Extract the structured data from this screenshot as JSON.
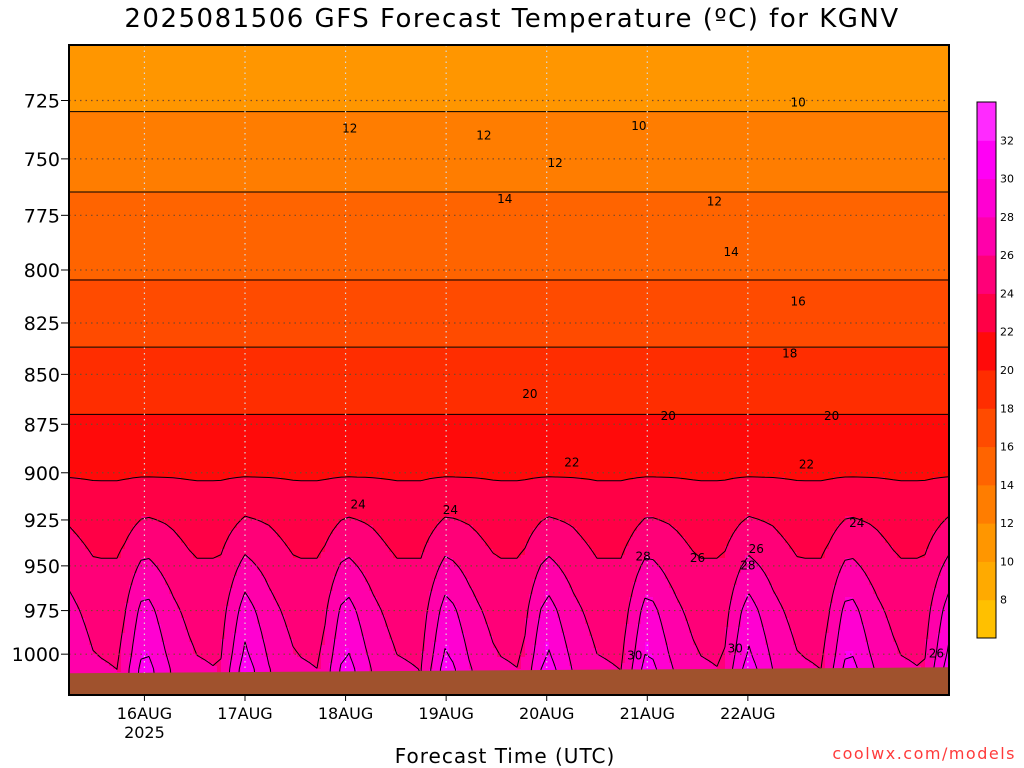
{
  "title": "2025081506 GFS Forecast Temperature (ºC) for KGNV",
  "xlabel": "Forecast Time (UTC)",
  "credit": "coolwx.com/models",
  "chart_data": {
    "type": "heatmap",
    "title": "2025081506 GFS Forecast Temperature (ºC) for KGNV",
    "xlabel": "Forecast Time (UTC)",
    "ylabel": "",
    "x_range_hours": [
      -18,
      192
    ],
    "y_range": [
      1024,
      702
    ],
    "y_scale": "pressure (reversed)",
    "y_ticks": [
      725,
      750,
      775,
      800,
      825,
      850,
      875,
      900,
      925,
      950,
      975,
      1000
    ],
    "x_ticks": [
      {
        "label": "16AUG",
        "sublabel": "2025",
        "hour": 0
      },
      {
        "label": "17AUG",
        "sublabel": "",
        "hour": 24
      },
      {
        "label": "18AUG",
        "sublabel": "",
        "hour": 48
      },
      {
        "label": "19AUG",
        "sublabel": "",
        "hour": 72
      },
      {
        "label": "20AUG",
        "sublabel": "",
        "hour": 96
      },
      {
        "label": "21AUG",
        "sublabel": "",
        "hour": 120
      },
      {
        "label": "22AUG",
        "sublabel": "",
        "hour": 144
      }
    ],
    "grid": true,
    "surface_pressure": 1010,
    "colorbar": {
      "placement": "right",
      "levels": [
        6,
        8,
        10,
        12,
        14,
        16,
        18,
        20,
        22,
        24,
        26,
        28,
        30,
        32,
        34
      ],
      "tick_labels": [
        8,
        10,
        12,
        14,
        16,
        18,
        20,
        22,
        24,
        26,
        28,
        30,
        32
      ],
      "colors": [
        "#ffc000",
        "#ffaa00",
        "#ff9600",
        "#ff7d00",
        "#ff6400",
        "#ff4b00",
        "#ff2d00",
        "#ff0a0a",
        "#ff0046",
        "#ff0078",
        "#ff00aa",
        "#ff00d2",
        "#ff00f5",
        "#ff2aff"
      ]
    },
    "profile_pressures": [
      700,
      725,
      750,
      775,
      800,
      825,
      850,
      875,
      900,
      925,
      950,
      975,
      1000,
      1010
    ],
    "profiles": [
      {
        "hour": -18,
        "temps": [
          10.0,
          11.7,
          13.3,
          14.5,
          15.7,
          17.3,
          18.8,
          20.3,
          21.8,
          23.8,
          25.3,
          26.6,
          27.6,
          28.0
        ]
      },
      {
        "hour": -12,
        "temps": [
          10.0,
          11.7,
          13.3,
          14.5,
          15.7,
          17.3,
          18.8,
          20.3,
          21.8,
          23.0,
          24.2,
          25.2,
          26.0,
          26.4
        ]
      },
      {
        "hour": -6,
        "temps": [
          10.0,
          11.7,
          13.3,
          14.5,
          15.7,
          17.3,
          18.8,
          20.3,
          21.8,
          23.0,
          24.2,
          25.0,
          25.7,
          26.0
        ]
      },
      {
        "hour": 0,
        "temps": [
          10.0,
          11.7,
          13.3,
          14.5,
          15.7,
          17.3,
          18.8,
          20.3,
          21.8,
          24.2,
          26.6,
          29.0,
          30.4,
          31.3
        ]
      },
      {
        "hour": 6,
        "temps": [
          10.0,
          11.7,
          13.3,
          14.5,
          15.7,
          17.3,
          18.8,
          20.3,
          21.8,
          23.8,
          25.3,
          26.6,
          27.6,
          28.0
        ]
      },
      {
        "hour": 12,
        "temps": [
          10.0,
          11.7,
          13.3,
          14.5,
          15.7,
          17.3,
          18.8,
          20.3,
          21.8,
          23.0,
          24.2,
          25.2,
          26.0,
          26.4
        ]
      },
      {
        "hour": 18,
        "temps": [
          10.0,
          11.7,
          13.3,
          14.5,
          15.7,
          17.3,
          18.8,
          20.3,
          21.8,
          23.0,
          24.2,
          25.0,
          25.7,
          26.0
        ]
      },
      {
        "hour": 24,
        "temps": [
          10.0,
          11.7,
          13.3,
          14.5,
          15.7,
          17.3,
          18.8,
          20.3,
          21.8,
          24.2,
          26.6,
          29.0,
          30.4,
          31.3
        ]
      },
      {
        "hour": 30,
        "temps": [
          10.0,
          11.7,
          13.3,
          14.5,
          15.7,
          17.3,
          18.8,
          20.3,
          21.8,
          23.8,
          25.3,
          26.6,
          27.6,
          28.0
        ]
      },
      {
        "hour": 36,
        "temps": [
          10.0,
          11.7,
          13.3,
          14.5,
          15.7,
          17.3,
          18.8,
          20.3,
          21.8,
          23.0,
          24.2,
          25.2,
          26.0,
          26.4
        ]
      },
      {
        "hour": 42,
        "temps": [
          10.0,
          11.7,
          13.3,
          14.5,
          15.7,
          17.3,
          18.8,
          20.3,
          21.8,
          23.0,
          24.2,
          25.0,
          25.7,
          26.0
        ]
      },
      {
        "hour": 48,
        "temps": [
          10.0,
          11.7,
          13.3,
          14.5,
          15.7,
          17.3,
          18.8,
          20.3,
          21.8,
          24.2,
          26.6,
          29.0,
          30.4,
          31.3
        ]
      },
      {
        "hour": 54,
        "temps": [
          10.0,
          11.7,
          13.3,
          14.5,
          15.7,
          17.3,
          18.8,
          20.3,
          21.8,
          23.8,
          25.3,
          26.6,
          27.6,
          28.0
        ]
      },
      {
        "hour": 60,
        "temps": [
          10.0,
          11.7,
          13.3,
          14.5,
          15.7,
          17.3,
          18.8,
          20.3,
          21.8,
          23.0,
          24.2,
          25.2,
          26.0,
          26.4
        ]
      },
      {
        "hour": 66,
        "temps": [
          10.0,
          11.7,
          13.3,
          14.5,
          15.7,
          17.3,
          18.8,
          20.3,
          21.8,
          23.0,
          24.2,
          25.0,
          25.7,
          26.0
        ]
      },
      {
        "hour": 72,
        "temps": [
          10.0,
          11.7,
          13.3,
          14.5,
          15.7,
          17.3,
          18.8,
          20.3,
          21.8,
          24.2,
          26.6,
          29.0,
          30.4,
          31.3
        ]
      },
      {
        "hour": 78,
        "temps": [
          10.0,
          11.7,
          13.3,
          14.5,
          15.7,
          17.3,
          18.8,
          20.3,
          21.8,
          23.8,
          25.3,
          26.6,
          27.6,
          28.0
        ]
      },
      {
        "hour": 84,
        "temps": [
          10.0,
          11.7,
          13.3,
          14.5,
          15.7,
          17.3,
          18.8,
          20.3,
          21.8,
          23.0,
          24.2,
          25.2,
          26.0,
          26.4
        ]
      },
      {
        "hour": 90,
        "temps": [
          10.0,
          11.7,
          13.3,
          14.5,
          15.7,
          17.3,
          18.8,
          20.3,
          21.8,
          23.0,
          24.2,
          25.0,
          25.7,
          26.0
        ]
      },
      {
        "hour": 96,
        "temps": [
          10.0,
          11.7,
          13.3,
          14.5,
          15.7,
          17.3,
          18.8,
          20.3,
          21.8,
          24.2,
          26.6,
          29.0,
          30.4,
          31.3
        ]
      },
      {
        "hour": 102,
        "temps": [
          10.0,
          11.7,
          13.3,
          14.5,
          15.7,
          17.3,
          18.8,
          20.3,
          21.8,
          23.8,
          25.3,
          26.6,
          27.6,
          28.0
        ]
      },
      {
        "hour": 108,
        "temps": [
          10.0,
          11.7,
          13.3,
          14.5,
          15.7,
          17.3,
          18.8,
          20.3,
          21.8,
          23.0,
          24.2,
          25.2,
          26.0,
          26.4
        ]
      },
      {
        "hour": 114,
        "temps": [
          10.0,
          11.7,
          13.3,
          14.5,
          15.7,
          17.3,
          18.8,
          20.3,
          21.8,
          23.0,
          24.2,
          25.0,
          25.7,
          26.0
        ]
      },
      {
        "hour": 120,
        "temps": [
          10.0,
          11.7,
          13.3,
          14.5,
          15.7,
          17.3,
          18.8,
          20.3,
          21.8,
          24.2,
          26.6,
          29.0,
          30.4,
          31.3
        ]
      },
      {
        "hour": 126,
        "temps": [
          10.0,
          11.7,
          13.3,
          14.5,
          15.7,
          17.3,
          18.8,
          20.3,
          21.8,
          23.8,
          25.3,
          26.6,
          27.6,
          28.0
        ]
      },
      {
        "hour": 132,
        "temps": [
          10.0,
          11.7,
          13.3,
          14.5,
          15.7,
          17.3,
          18.8,
          20.3,
          21.8,
          23.0,
          24.2,
          25.2,
          26.0,
          26.4
        ]
      },
      {
        "hour": 138,
        "temps": [
          10.0,
          11.7,
          13.3,
          14.5,
          15.7,
          17.3,
          18.8,
          20.3,
          21.8,
          23.0,
          24.2,
          25.0,
          25.7,
          26.0
        ]
      },
      {
        "hour": 144,
        "temps": [
          10.0,
          11.7,
          13.3,
          14.5,
          15.7,
          17.3,
          18.8,
          20.3,
          21.8,
          24.2,
          26.6,
          29.0,
          30.4,
          31.3
        ]
      },
      {
        "hour": 150,
        "temps": [
          10.0,
          11.7,
          13.3,
          14.5,
          15.7,
          17.3,
          18.8,
          20.3,
          21.8,
          23.8,
          25.3,
          26.6,
          27.6,
          28.0
        ]
      },
      {
        "hour": 156,
        "temps": [
          10.0,
          11.7,
          13.3,
          14.5,
          15.7,
          17.3,
          18.8,
          20.3,
          21.8,
          23.0,
          24.2,
          25.2,
          26.0,
          26.4
        ]
      },
      {
        "hour": 162,
        "temps": [
          10.0,
          11.7,
          13.3,
          14.5,
          15.7,
          17.3,
          18.8,
          20.3,
          21.8,
          23.0,
          24.2,
          25.0,
          25.7,
          26.0
        ]
      },
      {
        "hour": 168,
        "temps": [
          10.0,
          11.7,
          13.3,
          14.5,
          15.7,
          17.3,
          18.8,
          20.3,
          21.8,
          24.2,
          26.6,
          29.0,
          30.4,
          31.3
        ]
      },
      {
        "hour": 174,
        "temps": [
          10.0,
          11.7,
          13.3,
          14.5,
          15.7,
          17.3,
          18.8,
          20.3,
          21.8,
          23.8,
          25.3,
          26.6,
          27.6,
          28.0
        ]
      },
      {
        "hour": 180,
        "temps": [
          10.0,
          11.7,
          13.3,
          14.5,
          15.7,
          17.3,
          18.8,
          20.3,
          21.8,
          23.0,
          24.2,
          25.2,
          26.0,
          26.4
        ]
      },
      {
        "hour": 186,
        "temps": [
          10.0,
          11.7,
          13.3,
          14.5,
          15.7,
          17.3,
          18.8,
          20.3,
          21.8,
          23.0,
          24.2,
          25.0,
          25.7,
          26.0
        ]
      },
      {
        "hour": 192,
        "temps": [
          10.0,
          11.7,
          13.3,
          14.5,
          15.7,
          17.3,
          18.8,
          20.3,
          21.8,
          24.2,
          26.6,
          29.0,
          30.4,
          31.3
        ]
      }
    ],
    "contour_labels": [
      {
        "text": "10",
        "hour": 118,
        "pressure": 736
      },
      {
        "text": "10",
        "hour": 156,
        "pressure": 726
      },
      {
        "text": "12",
        "hour": 49,
        "pressure": 737
      },
      {
        "text": "12",
        "hour": 81,
        "pressure": 740
      },
      {
        "text": "12",
        "hour": 98,
        "pressure": 752
      },
      {
        "text": "12",
        "hour": 136,
        "pressure": 769
      },
      {
        "text": "14",
        "hour": 86,
        "pressure": 768
      },
      {
        "text": "14",
        "hour": 140,
        "pressure": 792
      },
      {
        "text": "16",
        "hour": 156,
        "pressure": 815
      },
      {
        "text": "18",
        "hour": 154,
        "pressure": 840
      },
      {
        "text": "20",
        "hour": 92,
        "pressure": 860
      },
      {
        "text": "20",
        "hour": 125,
        "pressure": 871
      },
      {
        "text": "20",
        "hour": 164,
        "pressure": 871
      },
      {
        "text": "22",
        "hour": 102,
        "pressure": 895
      },
      {
        "text": "22",
        "hour": 158,
        "pressure": 896
      },
      {
        "text": "24",
        "hour": 73,
        "pressure": 920
      },
      {
        "text": "24",
        "hour": 170,
        "pressure": 927
      },
      {
        "text": "26",
        "hour": 146,
        "pressure": 941
      },
      {
        "text": "26",
        "hour": 132,
        "pressure": 946
      },
      {
        "text": "28",
        "hour": 119,
        "pressure": 945
      },
      {
        "text": "28",
        "hour": 144,
        "pressure": 950
      },
      {
        "text": "30",
        "hour": 141,
        "pressure": 997
      },
      {
        "text": "30",
        "hour": 117,
        "pressure": 1001
      },
      {
        "text": "26",
        "hour": 189,
        "pressure": 1000
      },
      {
        "text": "24",
        "hour": 51,
        "pressure": 917
      }
    ]
  }
}
